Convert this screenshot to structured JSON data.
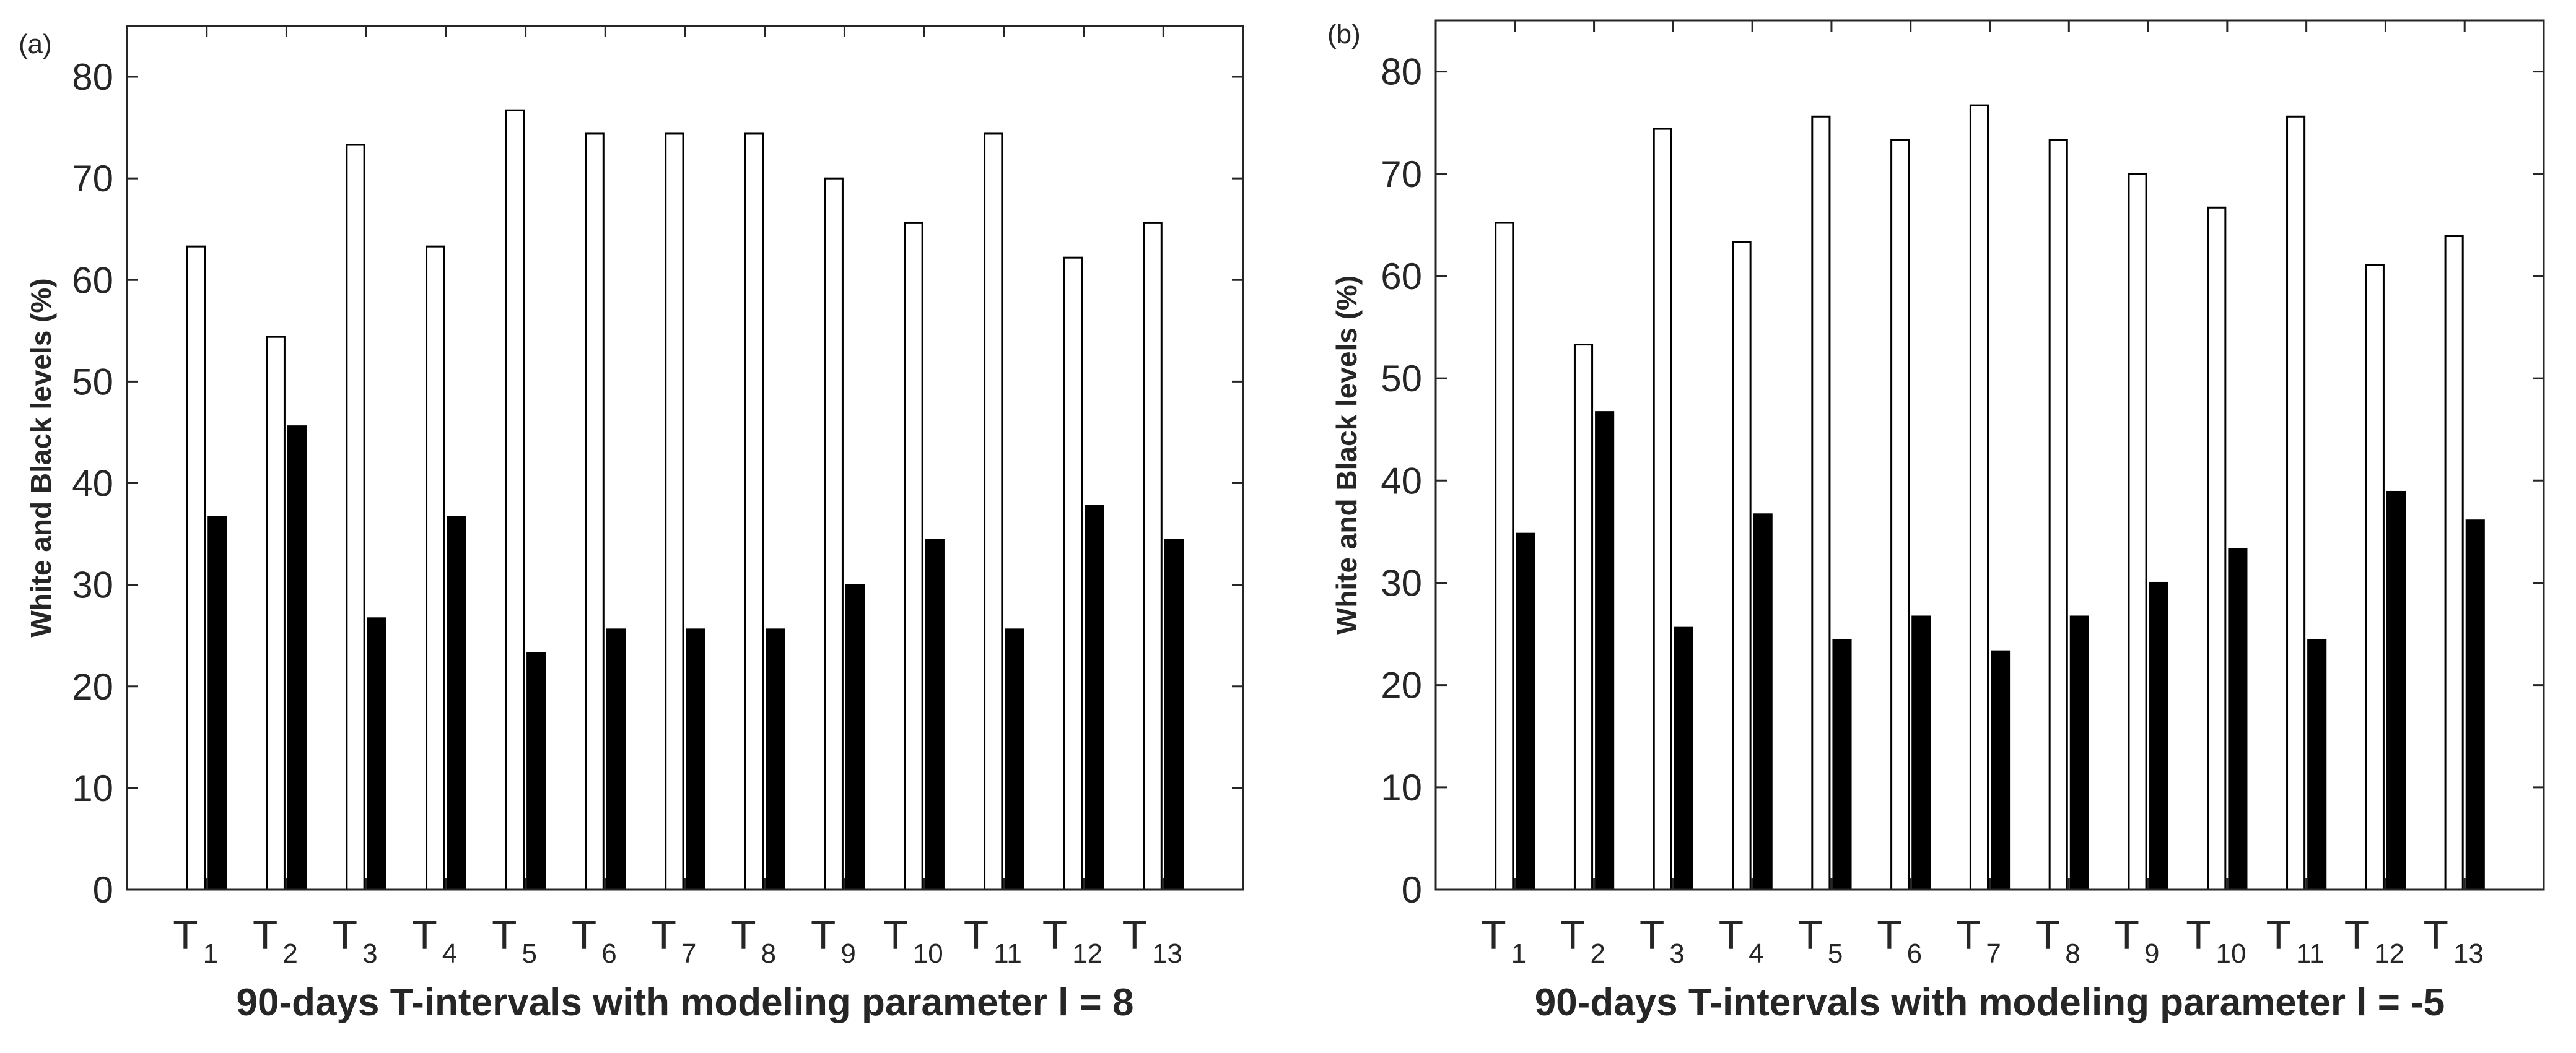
{
  "chart_data": [
    {
      "type": "bar",
      "panel_label": "(a)",
      "categories": [
        {
          "main": "T",
          "sub": "1"
        },
        {
          "main": "T",
          "sub": "2"
        },
        {
          "main": "T",
          "sub": "3"
        },
        {
          "main": "T",
          "sub": "4"
        },
        {
          "main": "T",
          "sub": "5"
        },
        {
          "main": "T",
          "sub": "6"
        },
        {
          "main": "T",
          "sub": "7"
        },
        {
          "main": "T",
          "sub": "8"
        },
        {
          "main": "T",
          "sub": "9"
        },
        {
          "main": "T",
          "sub": "10"
        },
        {
          "main": "T",
          "sub": "11"
        },
        {
          "main": "T",
          "sub": "12"
        },
        {
          "main": "T",
          "sub": "13"
        }
      ],
      "series": [
        {
          "name": "White",
          "color": "#ffffff",
          "values": [
            63.3,
            54.4,
            73.3,
            63.3,
            76.7,
            74.4,
            74.4,
            74.4,
            70.0,
            65.6,
            74.4,
            62.2,
            65.6
          ]
        },
        {
          "name": "Black",
          "color": "#000000",
          "values": [
            36.7,
            45.6,
            26.7,
            36.7,
            23.3,
            25.6,
            25.6,
            25.6,
            30.0,
            34.4,
            25.6,
            37.8,
            34.4
          ]
        }
      ],
      "ylim": [
        0,
        85
      ],
      "yticks": [
        0,
        10,
        20,
        30,
        40,
        50,
        60,
        70,
        80
      ],
      "ylabel": "White and Black levels (%)",
      "xlabel": "90-days T-intervals with modeling parameter l = 8"
    },
    {
      "type": "bar",
      "panel_label": "(b)",
      "categories": [
        {
          "main": "T",
          "sub": "1"
        },
        {
          "main": "T",
          "sub": "2"
        },
        {
          "main": "T",
          "sub": "3"
        },
        {
          "main": "T",
          "sub": "4"
        },
        {
          "main": "T",
          "sub": "5"
        },
        {
          "main": "T",
          "sub": "6"
        },
        {
          "main": "T",
          "sub": "7"
        },
        {
          "main": "T",
          "sub": "8"
        },
        {
          "main": "T",
          "sub": "9"
        },
        {
          "main": "T",
          "sub": "10"
        },
        {
          "main": "T",
          "sub": "11"
        },
        {
          "main": "T",
          "sub": "12"
        },
        {
          "main": "T",
          "sub": "13"
        }
      ],
      "series": [
        {
          "name": "White",
          "color": "#ffffff",
          "values": [
            65.2,
            53.3,
            74.4,
            63.3,
            75.6,
            73.3,
            76.7,
            73.3,
            70.0,
            66.7,
            75.6,
            61.1,
            63.9
          ]
        },
        {
          "name": "Black",
          "color": "#000000",
          "values": [
            34.8,
            46.7,
            25.6,
            36.7,
            24.4,
            26.7,
            23.3,
            26.7,
            30.0,
            33.3,
            24.4,
            38.9,
            36.1
          ]
        }
      ],
      "ylim": [
        0,
        85
      ],
      "yticks": [
        0,
        10,
        20,
        30,
        40,
        50,
        60,
        70,
        80
      ],
      "ylabel": "White and Black levels (%)",
      "xlabel": "90-days T-intervals with modeling parameter l = -5"
    }
  ]
}
